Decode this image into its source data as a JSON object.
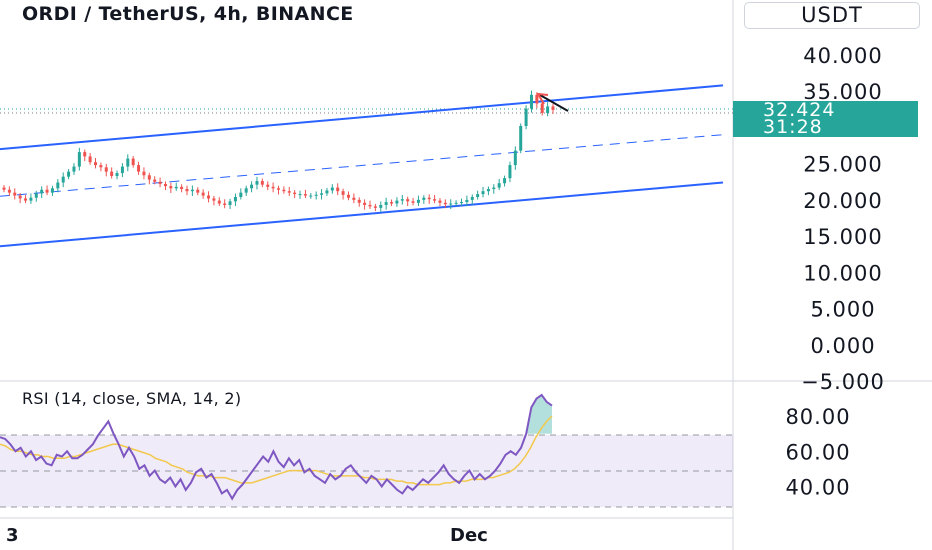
{
  "header": {
    "title": "ORDI / TetherUS, 4h, BINANCE",
    "currency": "USDT"
  },
  "price_tag": {
    "price": "32.424",
    "countdown": "31:28",
    "color": "#26a69a"
  },
  "rsi_title": "RSI (14, close, SMA, 14, 2)",
  "x_labels": {
    "left": "3",
    "dec": "Dec"
  },
  "colors": {
    "up": "#26a69a",
    "down": "#ef5350",
    "channel": "#2962ff",
    "rsi": "#7e57c2",
    "rsi_ma": "#f2c94c",
    "rsi_band": "#7e57c2",
    "axis_text": "#131722"
  },
  "chart_data": [
    {
      "type": "candlestick",
      "title": "ORDI / TetherUS, 4h, BINANCE",
      "y_ticks": [
        "40.000",
        "35.000",
        "25.000",
        "20.000",
        "15.000",
        "10.000",
        "5.000",
        "0.000",
        "−5.000"
      ],
      "ylim": [
        -5,
        41
      ],
      "x_ticks": [
        "3",
        "Dec"
      ],
      "last_price": 32.424,
      "close_series": [
        21.4,
        21.0,
        20.6,
        20.2,
        19.9,
        20.3,
        20.9,
        21.4,
        21.0,
        21.6,
        22.4,
        23.2,
        23.9,
        24.6,
        26.6,
        26.0,
        25.2,
        24.8,
        24.5,
        23.9,
        23.3,
        23.7,
        24.6,
        25.7,
        24.8,
        23.9,
        23.4,
        22.8,
        22.5,
        22.2,
        21.9,
        21.6,
        21.8,
        21.5,
        21.2,
        21.4,
        21.0,
        20.6,
        20.2,
        19.9,
        19.5,
        19.3,
        19.8,
        20.4,
        21.0,
        21.6,
        22.1,
        22.6,
        22.1,
        21.8,
        21.6,
        21.4,
        21.2,
        21.0,
        20.8,
        20.8,
        20.6,
        20.6,
        20.7,
        20.9,
        21.3,
        21.7,
        21.2,
        20.7,
        20.3,
        20.0,
        19.6,
        19.3,
        19.1,
        18.9,
        19.3,
        19.7,
        19.5,
        19.9,
        20.1,
        19.8,
        19.6,
        20.0,
        20.3,
        20.1,
        19.9,
        19.6,
        19.4,
        19.5,
        19.6,
        19.7,
        20.0,
        20.4,
        20.8,
        21.2,
        21.5,
        21.7,
        22.3,
        23.0,
        24.8,
        26.8,
        30.2,
        32.6,
        34.5,
        33.3,
        32.0,
        32.9,
        32.424
      ],
      "channel": {
        "upper": {
          "start": 27.0,
          "end": 35.8
        },
        "middle": {
          "start": 20.5,
          "end": 29.0
        },
        "lower": {
          "start": 13.6,
          "end": 22.4
        }
      }
    },
    {
      "type": "line",
      "title": "RSI (14, close, SMA, 14, 2)",
      "y_ticks": [
        "80.00",
        "60.00",
        "40.00"
      ],
      "ylim": [
        22,
        100
      ],
      "band": [
        30,
        70
      ],
      "series": [
        {
          "values": [
            68,
            67,
            64,
            60,
            62,
            57,
            60,
            55,
            57,
            53,
            52,
            58,
            57,
            60,
            56,
            56,
            58,
            61,
            64,
            69,
            73,
            77,
            70,
            64,
            57,
            62,
            57,
            50,
            52,
            46,
            49,
            44,
            42,
            45,
            40,
            44,
            38,
            42,
            48,
            50,
            45,
            47,
            42,
            36,
            38,
            33,
            38,
            41,
            45,
            49,
            53,
            57,
            54,
            60,
            54,
            51,
            56,
            52,
            55,
            48,
            50,
            46,
            44,
            42,
            47,
            44,
            46,
            50,
            52,
            48,
            45,
            42,
            46,
            44,
            40,
            44,
            41,
            38,
            36,
            40,
            38,
            41,
            44,
            42,
            45,
            48,
            52,
            47,
            44,
            42,
            46,
            49,
            44,
            47,
            44,
            46,
            49,
            53,
            58,
            60,
            58,
            62,
            70,
            85,
            90,
            92,
            88,
            86
          ]
        },
        {
          "values": [
            64,
            63,
            61,
            60,
            60,
            59,
            58,
            58,
            57,
            57,
            56,
            56,
            56,
            57,
            57,
            58,
            59,
            60,
            61,
            62,
            63,
            64,
            64,
            63,
            62,
            61,
            60,
            59,
            58,
            56,
            55,
            54,
            52,
            51,
            50,
            48,
            47,
            46,
            46,
            46,
            45,
            45,
            45,
            44,
            43,
            42,
            42,
            42,
            43,
            44,
            45,
            46,
            47,
            48,
            49,
            49,
            49,
            49,
            49,
            49,
            48,
            47,
            46,
            46,
            46,
            46,
            46,
            46,
            45,
            45,
            44,
            44,
            44,
            44,
            43,
            43,
            42,
            42,
            41,
            41,
            41,
            41,
            41,
            42,
            42,
            43,
            43,
            43,
            44,
            44,
            44,
            45,
            45,
            46,
            47,
            48,
            50,
            53,
            57,
            62,
            68,
            73,
            77,
            80
          ]
        }
      ]
    }
  ]
}
